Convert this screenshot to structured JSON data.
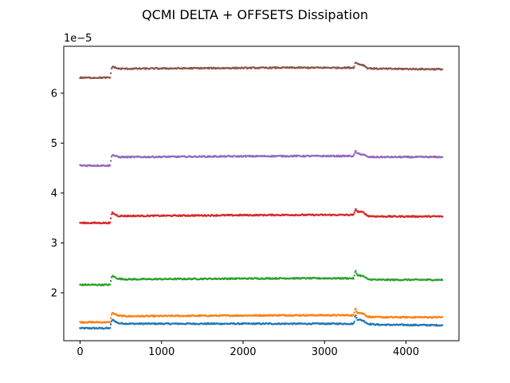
{
  "chart_data": {
    "type": "scatter",
    "title": "QCMI DELTA + OFFSETS Dissipation",
    "xlabel": "",
    "ylabel": "",
    "y_offset_text": "1e−5",
    "xlim": [
      -200,
      4650
    ],
    "ylim": [
      1.04,
      6.94
    ],
    "y_unit_multiplier": 1e-05,
    "x_ticks": [
      0,
      1000,
      2000,
      3000,
      4000
    ],
    "x_tick_labels": [
      "0",
      "1000",
      "2000",
      "3000",
      "4000"
    ],
    "y_ticks": [
      2,
      3,
      4,
      5,
      6
    ],
    "y_tick_labels": [
      "2",
      "3",
      "4",
      "5",
      "6"
    ],
    "grid": false,
    "marker": "small dots",
    "x_range": [
      0,
      4450
    ],
    "series_shape": "flat baseline, step up near x=380 with an overshoot, slow plateau, spike near x=3380, drop near x=3520, then flat",
    "series": [
      {
        "color": "#1f77b4",
        "points": [
          [
            0,
            1.29
          ],
          [
            370,
            1.29
          ],
          [
            390,
            1.46
          ],
          [
            420,
            1.44
          ],
          [
            470,
            1.39
          ],
          [
            600,
            1.38
          ],
          [
            1500,
            1.38
          ],
          [
            2500,
            1.38
          ],
          [
            3360,
            1.38
          ],
          [
            3380,
            1.56
          ],
          [
            3400,
            1.47
          ],
          [
            3480,
            1.44
          ],
          [
            3530,
            1.38
          ],
          [
            3650,
            1.36
          ],
          [
            4450,
            1.35
          ]
        ]
      },
      {
        "color": "#ff7f0e",
        "points": [
          [
            0,
            1.41
          ],
          [
            370,
            1.41
          ],
          [
            390,
            1.6
          ],
          [
            420,
            1.58
          ],
          [
            470,
            1.54
          ],
          [
            600,
            1.53
          ],
          [
            1500,
            1.54
          ],
          [
            2500,
            1.55
          ],
          [
            3360,
            1.55
          ],
          [
            3380,
            1.7
          ],
          [
            3400,
            1.61
          ],
          [
            3480,
            1.58
          ],
          [
            3530,
            1.52
          ],
          [
            3650,
            1.51
          ],
          [
            4450,
            1.51
          ]
        ]
      },
      {
        "color": "#2ca02c",
        "points": [
          [
            0,
            2.16
          ],
          [
            370,
            2.16
          ],
          [
            390,
            2.34
          ],
          [
            420,
            2.32
          ],
          [
            470,
            2.28
          ],
          [
            600,
            2.27
          ],
          [
            1500,
            2.28
          ],
          [
            2500,
            2.29
          ],
          [
            3360,
            2.29
          ],
          [
            3380,
            2.45
          ],
          [
            3400,
            2.36
          ],
          [
            3480,
            2.33
          ],
          [
            3530,
            2.27
          ],
          [
            3650,
            2.26
          ],
          [
            4450,
            2.26
          ]
        ]
      },
      {
        "color": "#d62728",
        "points": [
          [
            0,
            3.4
          ],
          [
            370,
            3.4
          ],
          [
            390,
            3.61
          ],
          [
            420,
            3.58
          ],
          [
            470,
            3.54
          ],
          [
            600,
            3.54
          ],
          [
            1500,
            3.55
          ],
          [
            2500,
            3.56
          ],
          [
            3360,
            3.56
          ],
          [
            3380,
            3.69
          ],
          [
            3400,
            3.63
          ],
          [
            3480,
            3.61
          ],
          [
            3530,
            3.54
          ],
          [
            3650,
            3.53
          ],
          [
            4450,
            3.53
          ]
        ]
      },
      {
        "color": "#9467bd",
        "points": [
          [
            0,
            4.55
          ],
          [
            370,
            4.55
          ],
          [
            390,
            4.77
          ],
          [
            420,
            4.75
          ],
          [
            470,
            4.72
          ],
          [
            600,
            4.72
          ],
          [
            1500,
            4.73
          ],
          [
            2500,
            4.74
          ],
          [
            3360,
            4.74
          ],
          [
            3380,
            4.85
          ],
          [
            3400,
            4.79
          ],
          [
            3480,
            4.77
          ],
          [
            3530,
            4.72
          ],
          [
            3650,
            4.72
          ],
          [
            4450,
            4.72
          ]
        ]
      },
      {
        "color": "#8c564b",
        "points": [
          [
            0,
            6.31
          ],
          [
            370,
            6.31
          ],
          [
            390,
            6.53
          ],
          [
            420,
            6.52
          ],
          [
            470,
            6.49
          ],
          [
            600,
            6.49
          ],
          [
            1500,
            6.5
          ],
          [
            2500,
            6.51
          ],
          [
            3360,
            6.51
          ],
          [
            3380,
            6.63
          ],
          [
            3400,
            6.59
          ],
          [
            3480,
            6.56
          ],
          [
            3530,
            6.5
          ],
          [
            3650,
            6.49
          ],
          [
            4450,
            6.48
          ]
        ]
      }
    ]
  }
}
